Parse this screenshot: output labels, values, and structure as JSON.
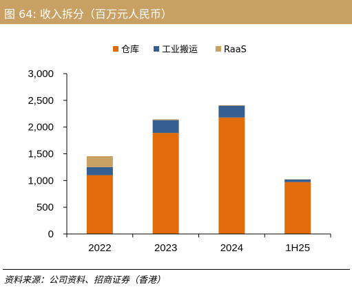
{
  "header": {
    "title": "图 64:  收入拆分（百万元人民币）"
  },
  "source": "资料来源：公司资料、招商证券（香港）",
  "chart_data": {
    "type": "bar",
    "stacked": true,
    "categories": [
      "2022",
      "2023",
      "2024",
      "1H25"
    ],
    "series": [
      {
        "name": "仓库",
        "color": "#e36c0a",
        "values": [
          1100,
          1890,
          2180,
          970
        ]
      },
      {
        "name": "工业搬运",
        "color": "#365f91",
        "values": [
          150,
          240,
          220,
          50
        ]
      },
      {
        "name": "RaaS",
        "color": "#c9a063",
        "values": [
          205,
          15,
          10,
          5
        ]
      }
    ],
    "y_ticks": [
      "0",
      "500",
      "1,000",
      "1,500",
      "2,000",
      "2,500",
      "3,000"
    ],
    "ylim": [
      0,
      3000
    ],
    "grid": false,
    "legend": "top-center"
  }
}
